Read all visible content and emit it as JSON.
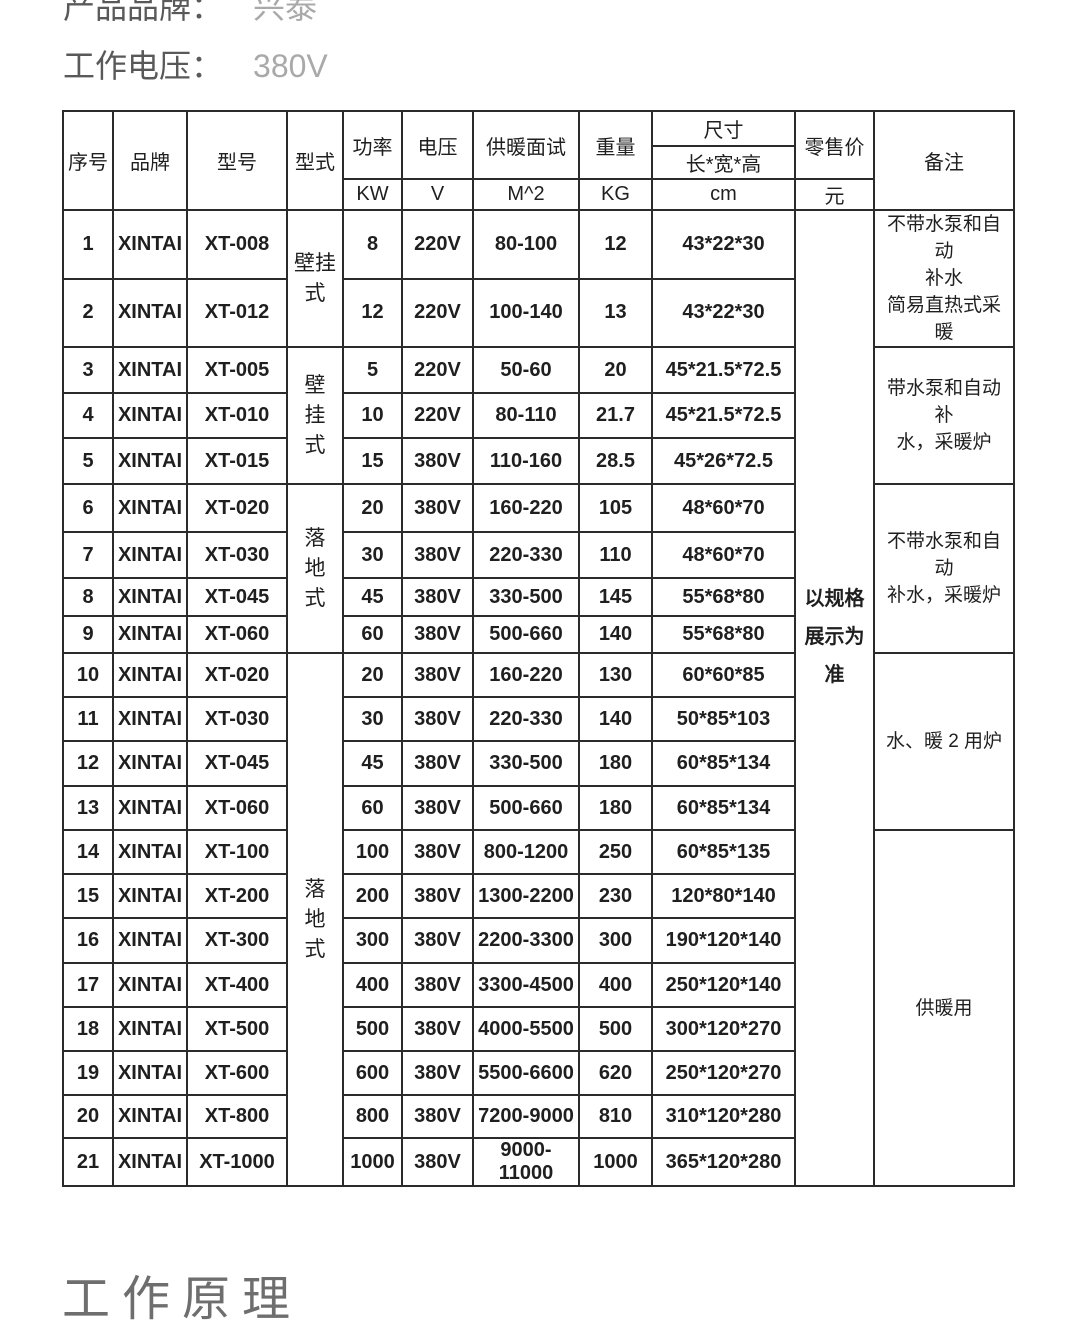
{
  "page": {
    "product_brand_label": "产品品牌：",
    "product_brand_value": "兴泰",
    "working_voltage_label": "工作电压：",
    "working_voltage_value": "380V",
    "section_heading": "工作原理"
  },
  "colors": {
    "label_gray": "#595959",
    "value_gray": "#a9a9a9",
    "table_text": "#1f1f1f",
    "table_border": "#2b2b2b",
    "heading_gray": "#6e6e6e"
  },
  "table": {
    "headers": {
      "serial": "序号",
      "brand": "品牌",
      "model": "型号",
      "type": "型式",
      "power": "功率",
      "voltage": "电压",
      "area": "供暖面试",
      "weight": "重量",
      "size": "尺寸",
      "size_sub": "长*宽*高",
      "price": "零售价",
      "remark": "备注"
    },
    "units": {
      "power": "KW",
      "voltage": "V",
      "area": "M^2",
      "weight": "KG",
      "size": "cm",
      "price": "元"
    },
    "price_note": "以规格\n展示为准",
    "type_merges": [
      {
        "start": 1,
        "span": 2,
        "text": "壁挂\n式"
      },
      {
        "start": 3,
        "span": 3,
        "text": "壁\n挂\n式"
      },
      {
        "start": 6,
        "span": 4,
        "text": "落\n地\n式"
      },
      {
        "start": 10,
        "span": 12,
        "text": "落\n地\n式"
      }
    ],
    "remark_merges": [
      {
        "start": 1,
        "span": 2,
        "text": "不带水泵和自动\n补水\n简易直热式采暖"
      },
      {
        "start": 3,
        "span": 3,
        "text": "带水泵和自动补\n水，采暖炉"
      },
      {
        "start": 6,
        "span": 4,
        "text": "不带水泵和自动\n补水，采暖炉"
      },
      {
        "start": 10,
        "span": 4,
        "text": "水、暖 2 用炉"
      },
      {
        "start": 14,
        "span": 8,
        "text": "供暖用"
      }
    ],
    "rows": [
      {
        "no": "1",
        "brand": "XINTAI",
        "model": "XT-008",
        "power": "8",
        "voltage": "220V",
        "area": "80-100",
        "weight": "12",
        "size": "43*22*30"
      },
      {
        "no": "2",
        "brand": "XINTAI",
        "model": "XT-012",
        "power": "12",
        "voltage": "220V",
        "area": "100-140",
        "weight": "13",
        "size": "43*22*30"
      },
      {
        "no": "3",
        "brand": "XINTAI",
        "model": "XT-005",
        "power": "5",
        "voltage": "220V",
        "area": "50-60",
        "weight": "20",
        "size": "45*21.5*72.5"
      },
      {
        "no": "4",
        "brand": "XINTAI",
        "model": "XT-010",
        "power": "10",
        "voltage": "220V",
        "area": "80-110",
        "weight": "21.7",
        "size": "45*21.5*72.5"
      },
      {
        "no": "5",
        "brand": "XINTAI",
        "model": "XT-015",
        "power": "15",
        "voltage": "380V",
        "area": "110-160",
        "weight": "28.5",
        "size": "45*26*72.5"
      },
      {
        "no": "6",
        "brand": "XINTAI",
        "model": "XT-020",
        "power": "20",
        "voltage": "380V",
        "area": "160-220",
        "weight": "105",
        "size": "48*60*70"
      },
      {
        "no": "7",
        "brand": "XINTAI",
        "model": "XT-030",
        "power": "30",
        "voltage": "380V",
        "area": "220-330",
        "weight": "110",
        "size": "48*60*70"
      },
      {
        "no": "8",
        "brand": "XINTAI",
        "model": "XT-045",
        "power": "45",
        "voltage": "380V",
        "area": "330-500",
        "weight": "145",
        "size": "55*68*80"
      },
      {
        "no": "9",
        "brand": "XINTAI",
        "model": "XT-060",
        "power": "60",
        "voltage": "380V",
        "area": "500-660",
        "weight": "140",
        "size": "55*68*80"
      },
      {
        "no": "10",
        "brand": "XINTAI",
        "model": "XT-020",
        "power": "20",
        "voltage": "380V",
        "area": "160-220",
        "weight": "130",
        "size": "60*60*85"
      },
      {
        "no": "11",
        "brand": "XINTAI",
        "model": "XT-030",
        "power": "30",
        "voltage": "380V",
        "area": "220-330",
        "weight": "140",
        "size": "50*85*103"
      },
      {
        "no": "12",
        "brand": "XINTAI",
        "model": "XT-045",
        "power": "45",
        "voltage": "380V",
        "area": "330-500",
        "weight": "180",
        "size": "60*85*134"
      },
      {
        "no": "13",
        "brand": "XINTAI",
        "model": "XT-060",
        "power": "60",
        "voltage": "380V",
        "area": "500-660",
        "weight": "180",
        "size": "60*85*134"
      },
      {
        "no": "14",
        "brand": "XINTAI",
        "model": "XT-100",
        "power": "100",
        "voltage": "380V",
        "area": "800-1200",
        "weight": "250",
        "size": "60*85*135"
      },
      {
        "no": "15",
        "brand": "XINTAI",
        "model": "XT-200",
        "power": "200",
        "voltage": "380V",
        "area": "1300-2200",
        "weight": "230",
        "size": "120*80*140"
      },
      {
        "no": "16",
        "brand": "XINTAI",
        "model": "XT-300",
        "power": "300",
        "voltage": "380V",
        "area": "2200-3300",
        "weight": "300",
        "size": "190*120*140"
      },
      {
        "no": "17",
        "brand": "XINTAI",
        "model": "XT-400",
        "power": "400",
        "voltage": "380V",
        "area": "3300-4500",
        "weight": "400",
        "size": "250*120*140"
      },
      {
        "no": "18",
        "brand": "XINTAI",
        "model": "XT-500",
        "power": "500",
        "voltage": "380V",
        "area": "4000-5500",
        "weight": "500",
        "size": "300*120*270"
      },
      {
        "no": "19",
        "brand": "XINTAI",
        "model": "XT-600",
        "power": "600",
        "voltage": "380V",
        "area": "5500-6600",
        "weight": "620",
        "size": "250*120*270"
      },
      {
        "no": "20",
        "brand": "XINTAI",
        "model": "XT-800",
        "power": "800",
        "voltage": "380V",
        "area": "7200-9000",
        "weight": "810",
        "size": "310*120*280"
      },
      {
        "no": "21",
        "brand": "XINTAI",
        "model": "XT-1000",
        "power": "1000",
        "voltage": "380V",
        "area": "9000-11000",
        "weight": "1000",
        "size": "365*120*280"
      }
    ]
  }
}
